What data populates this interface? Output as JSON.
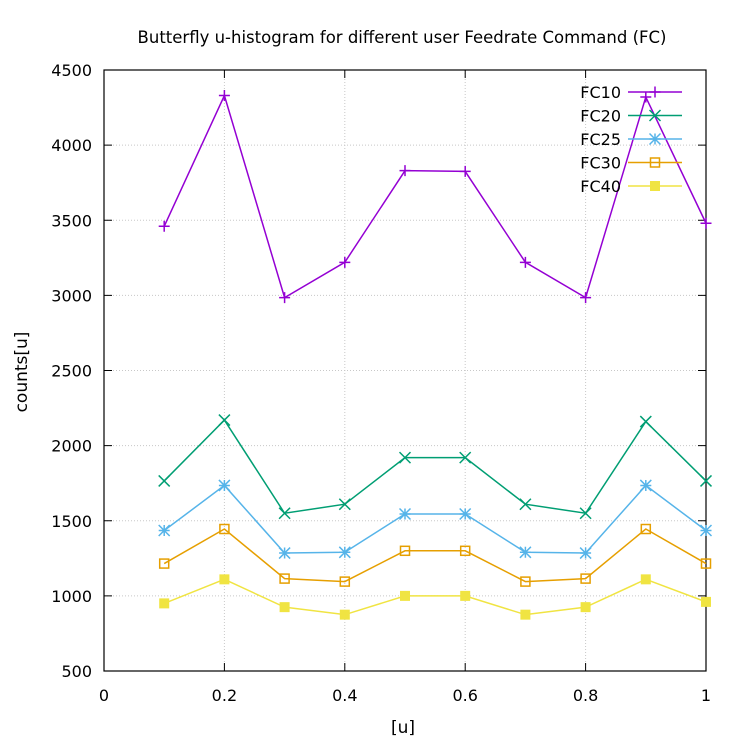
{
  "chart_data": {
    "type": "line",
    "title": "Butterfly u-histogram for different user Feedrate Command (FC)",
    "xlabel": "[u]",
    "ylabel": "counts[u]",
    "xlim": [
      0,
      1
    ],
    "ylim": [
      500,
      4500
    ],
    "x_ticks": [
      0,
      0.2,
      0.4,
      0.6,
      0.8,
      1
    ],
    "x_tick_labels": [
      "0",
      "0.2",
      "0.4",
      "0.6",
      "0.8",
      "1"
    ],
    "y_ticks": [
      500,
      1000,
      1500,
      2000,
      2500,
      3000,
      3500,
      4000,
      4500
    ],
    "y_tick_labels": [
      "500",
      "1000",
      "1500",
      "2000",
      "2500",
      "3000",
      "3500",
      "4000",
      "4500"
    ],
    "grid": true,
    "legend_position": "top-right",
    "x": [
      0.1,
      0.2,
      0.3,
      0.4,
      0.5,
      0.6,
      0.7,
      0.8,
      0.9,
      1.0
    ],
    "series": [
      {
        "name": "FC10",
        "color": "#9400d3",
        "marker": "plus",
        "values": [
          3460,
          4330,
          2985,
          3220,
          3830,
          3825,
          3220,
          2985,
          4320,
          3480
        ]
      },
      {
        "name": "FC20",
        "color": "#009e73",
        "marker": "cross",
        "values": [
          1765,
          2170,
          1550,
          1610,
          1920,
          1920,
          1610,
          1550,
          2160,
          1765
        ]
      },
      {
        "name": "FC25",
        "color": "#56b4e9",
        "marker": "star",
        "values": [
          1435,
          1735,
          1285,
          1290,
          1545,
          1545,
          1290,
          1285,
          1735,
          1435
        ]
      },
      {
        "name": "FC30",
        "color": "#e69f00",
        "marker": "open-square",
        "values": [
          1215,
          1445,
          1115,
          1095,
          1300,
          1300,
          1095,
          1115,
          1445,
          1215
        ]
      },
      {
        "name": "FC40",
        "color": "#f0e442",
        "marker": "filled-square",
        "values": [
          950,
          1110,
          925,
          875,
          1000,
          1000,
          875,
          925,
          1110,
          960
        ]
      }
    ]
  }
}
